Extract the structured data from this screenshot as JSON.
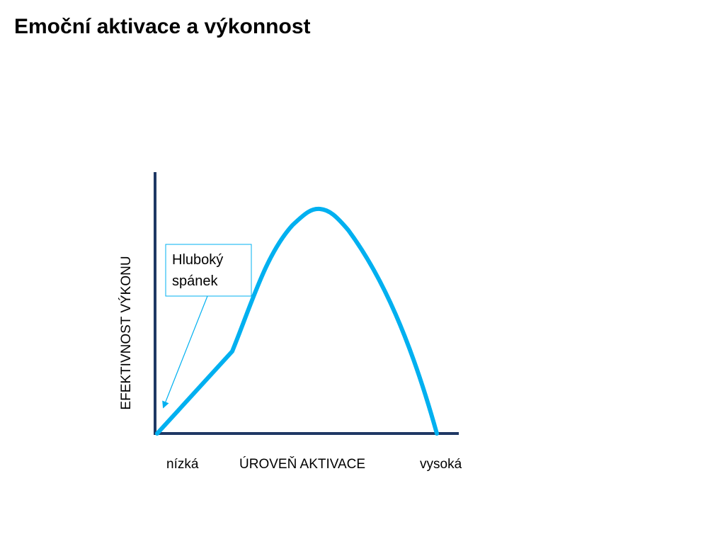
{
  "title": "Emoční aktivace a výkonnost",
  "y_axis_label": "EFEKTIVNOST VÝKONU",
  "x_axis_label": "ÚROVEŇ AKTIVACE",
  "x_low_label": "nízká",
  "x_high_label": "vysoká",
  "callout": {
    "line1": "Hluboký",
    "line2": "spánek"
  },
  "colors": {
    "axis": "#1f3864",
    "curve": "#00b0f0",
    "callout_border": "#00b0f0",
    "arrow": "#00b0f0"
  }
}
